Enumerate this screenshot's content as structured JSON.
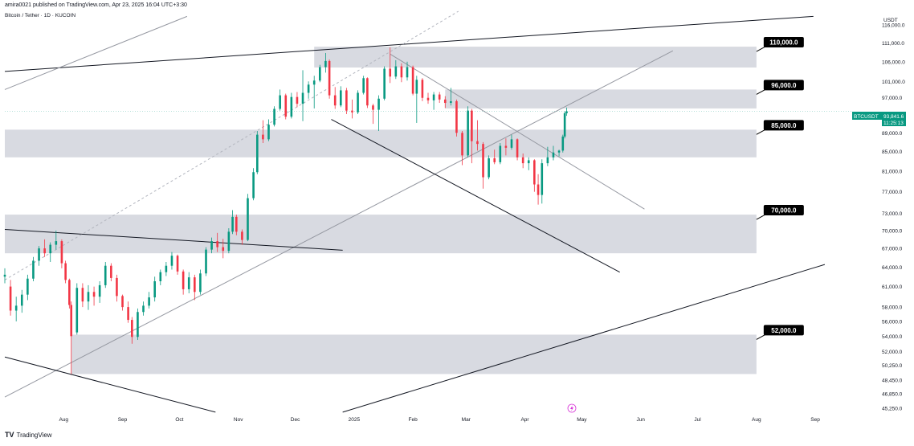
{
  "header": {
    "publish_line": "amira0021 published on TradingView.com, Apr 23, 2025 16:04 UTC+3:30",
    "symbol_line": "Bitcoin / Tether · 1D · KUCOIN"
  },
  "footer": {
    "logo_glyph": "TV",
    "brand": "TradingView"
  },
  "colors": {
    "up": "#089981",
    "down": "#f23645",
    "zone": "#d1d4dc",
    "label_bg": "#000000",
    "price_tag": "#089981",
    "grid_line": "#131722",
    "flash_icon": "#d733d7"
  },
  "flash_icon": "lightning-icon",
  "chart_data": {
    "type": "candlestick",
    "symbol": "BTCUSDT",
    "exchange": "KUCOIN",
    "interval": "1D",
    "x_axis": {
      "range": [
        "2024-07-01",
        "2025-09-20"
      ]
    },
    "x_tick_labels": [
      {
        "date": "2024-08-01",
        "label": "Aug"
      },
      {
        "date": "2024-09-01",
        "label": "Sep"
      },
      {
        "date": "2024-10-01",
        "label": "Oct"
      },
      {
        "date": "2024-11-01",
        "label": "Nov"
      },
      {
        "date": "2024-12-01",
        "label": "Dec"
      },
      {
        "date": "2025-01-01",
        "label": "2025"
      },
      {
        "date": "2025-02-01",
        "label": "Feb"
      },
      {
        "date": "2025-03-01",
        "label": "Mar"
      },
      {
        "date": "2025-04-01",
        "label": "Apr"
      },
      {
        "date": "2025-05-01",
        "label": "May"
      },
      {
        "date": "2025-06-01",
        "label": "Jun"
      },
      {
        "date": "2025-07-01",
        "label": "Jul"
      },
      {
        "date": "2025-08-01",
        "label": "Aug"
      },
      {
        "date": "2025-09-01",
        "label": "Sep"
      }
    ],
    "y_axis": {
      "unit": "USDT",
      "scale": "log",
      "range": [
        44000,
        120000
      ]
    },
    "y_tick_labels": [
      {
        "value": 116000,
        "label": "116,000.0"
      },
      {
        "value": 111000,
        "label": "111,000.0"
      },
      {
        "value": 106000,
        "label": "106,000.0"
      },
      {
        "value": 101000,
        "label": "101,000.0"
      },
      {
        "value": 97000,
        "label": "97,000.0"
      },
      {
        "value": 89000,
        "label": "89,000.0"
      },
      {
        "value": 85000,
        "label": "85,000.0"
      },
      {
        "value": 81000,
        "label": "81,000.0"
      },
      {
        "value": 77000,
        "label": "77,000.0"
      },
      {
        "value": 73000,
        "label": "73,000.0"
      },
      {
        "value": 70000,
        "label": "70,000.0"
      },
      {
        "value": 67000,
        "label": "67,000.0"
      },
      {
        "value": 64000,
        "label": "64,000.0"
      },
      {
        "value": 61000,
        "label": "61,000.0"
      },
      {
        "value": 58000,
        "label": "58,000.0"
      },
      {
        "value": 56000,
        "label": "56,000.0"
      },
      {
        "value": 54000,
        "label": "54,000.0"
      },
      {
        "value": 52000,
        "label": "52,000.0"
      },
      {
        "value": 50250,
        "label": "50,250.0"
      },
      {
        "value": 48450,
        "label": "48,450.0"
      },
      {
        "value": 46850,
        "label": "46,850.0"
      },
      {
        "value": 45250,
        "label": "45,250.0"
      }
    ],
    "last_price": {
      "symbol": "BTCUSDT",
      "value": 93841.6,
      "label": "93,841.6",
      "countdown": "11:25:13"
    },
    "zones": [
      {
        "label": "110,000.0",
        "start": "2024-12-11",
        "end": "2025-08-01",
        "low": 104500,
        "high": 110000
      },
      {
        "label": "96,000.0",
        "start": "2025-02-18",
        "end": "2025-08-01",
        "low": 94500,
        "high": 99000
      },
      {
        "label": "85,000.0",
        "start": "2024-07-01",
        "end": "2025-08-01",
        "low": 83800,
        "high": 89700
      },
      {
        "label": "70,000.0",
        "start": "2024-07-01",
        "end": "2025-08-01",
        "low": 66200,
        "high": 72800
      },
      {
        "label": "52,000.0",
        "start": "2024-08-05",
        "end": "2025-08-01",
        "low": 49200,
        "high": 54200
      }
    ],
    "trendlines": [
      {
        "name": "upper-channel-line",
        "from": [
          "2024-07-01",
          103500
        ],
        "to": [
          "2025-08-31",
          118500
        ],
        "color": "#131722",
        "width": 1
      },
      {
        "name": "rising-channel-line",
        "from": [
          "2024-07-01",
          46500
        ],
        "to": [
          "2025-06-18",
          108900
        ],
        "color": "#9598a1",
        "width": 1
      },
      {
        "name": "upper-left-diagonal",
        "from": [
          "2024-07-01",
          99000
        ],
        "to": [
          "2024-10-05",
          118500
        ],
        "color": "#9598a1",
        "width": 1
      },
      {
        "name": "left-descending-line",
        "from": [
          "2024-07-01",
          70200
        ],
        "to": [
          "2024-12-26",
          66700
        ],
        "color": "#131722",
        "width": 1
      },
      {
        "name": "bottom-left-descending",
        "from": [
          "2024-07-01",
          51300
        ],
        "to": [
          "2024-10-20",
          44800
        ],
        "color": "#131722",
        "width": 1
      },
      {
        "name": "bottom-rising-line",
        "from": [
          "2024-12-26",
          44800
        ],
        "to": [
          "2025-09-06",
          64400
        ],
        "color": "#131722",
        "width": 1
      },
      {
        "name": "wedge-upper-line",
        "from": [
          "2025-01-20",
          108000
        ],
        "to": [
          "2025-06-03",
          73800
        ],
        "color": "#9598a1",
        "width": 1
      },
      {
        "name": "wedge-lower-line",
        "from": [
          "2024-12-20",
          92000
        ],
        "to": [
          "2025-05-21",
          63200
        ],
        "color": "#131722",
        "width": 1
      },
      {
        "name": "dashed-projection",
        "from": [
          "2024-07-01",
          62000
        ],
        "to": [
          "2025-02-25",
          120000
        ],
        "color": "#b2b5be",
        "width": 1,
        "dashed": true
      }
    ],
    "candles": [
      {
        "date": "2024-07-01",
        "o": 62500,
        "h": 63800,
        "l": 61500,
        "c": 62800
      },
      {
        "date": "2024-07-04",
        "o": 61000,
        "h": 62000,
        "l": 56800,
        "c": 57500
      },
      {
        "date": "2024-07-07",
        "o": 57500,
        "h": 59500,
        "l": 56000,
        "c": 58200
      },
      {
        "date": "2024-07-10",
        "o": 58200,
        "h": 60500,
        "l": 57200,
        "c": 59800
      },
      {
        "date": "2024-07-13",
        "o": 59800,
        "h": 62800,
        "l": 59000,
        "c": 62200
      },
      {
        "date": "2024-07-16",
        "o": 62200,
        "h": 65600,
        "l": 61800,
        "c": 65000
      },
      {
        "date": "2024-07-19",
        "o": 65000,
        "h": 67400,
        "l": 64200,
        "c": 67000
      },
      {
        "date": "2024-07-22",
        "o": 67000,
        "h": 68500,
        "l": 65600,
        "c": 66200
      },
      {
        "date": "2024-07-25",
        "o": 66200,
        "h": 68000,
        "l": 64800,
        "c": 67600
      },
      {
        "date": "2024-07-28",
        "o": 67600,
        "h": 70000,
        "l": 66800,
        "c": 68200
      },
      {
        "date": "2024-07-31",
        "o": 68200,
        "h": 68500,
        "l": 63800,
        "c": 64600
      },
      {
        "date": "2024-08-02",
        "o": 64600,
        "h": 65000,
        "l": 61500,
        "c": 62000
      },
      {
        "date": "2024-08-04",
        "o": 62000,
        "h": 62200,
        "l": 57800,
        "c": 58300
      },
      {
        "date": "2024-08-05",
        "o": 58300,
        "h": 58800,
        "l": 49200,
        "c": 54000
      },
      {
        "date": "2024-08-08",
        "o": 54500,
        "h": 61500,
        "l": 54200,
        "c": 60800
      },
      {
        "date": "2024-08-11",
        "o": 60800,
        "h": 61500,
        "l": 58000,
        "c": 58800
      },
      {
        "date": "2024-08-14",
        "o": 58800,
        "h": 61200,
        "l": 57600,
        "c": 60200
      },
      {
        "date": "2024-08-17",
        "o": 60200,
        "h": 61000,
        "l": 58200,
        "c": 59500
      },
      {
        "date": "2024-08-20",
        "o": 59500,
        "h": 61800,
        "l": 58600,
        "c": 61200
      },
      {
        "date": "2024-08-23",
        "o": 61200,
        "h": 64800,
        "l": 60800,
        "c": 64200
      },
      {
        "date": "2024-08-26",
        "o": 64200,
        "h": 64600,
        "l": 61800,
        "c": 62300
      },
      {
        "date": "2024-08-29",
        "o": 62300,
        "h": 62800,
        "l": 58800,
        "c": 59600
      },
      {
        "date": "2024-09-01",
        "o": 59600,
        "h": 59800,
        "l": 57500,
        "c": 58000
      },
      {
        "date": "2024-09-04",
        "o": 58000,
        "h": 58800,
        "l": 55800,
        "c": 56200
      },
      {
        "date": "2024-09-06",
        "o": 56200,
        "h": 56600,
        "l": 53000,
        "c": 53900
      },
      {
        "date": "2024-09-09",
        "o": 53900,
        "h": 57800,
        "l": 53500,
        "c": 57300
      },
      {
        "date": "2024-09-12",
        "o": 57300,
        "h": 58800,
        "l": 56800,
        "c": 58200
      },
      {
        "date": "2024-09-15",
        "o": 58200,
        "h": 60200,
        "l": 57800,
        "c": 59400
      },
      {
        "date": "2024-09-18",
        "o": 59400,
        "h": 62500,
        "l": 58800,
        "c": 61800
      },
      {
        "date": "2024-09-21",
        "o": 61800,
        "h": 63600,
        "l": 61200,
        "c": 63200
      },
      {
        "date": "2024-09-24",
        "o": 63200,
        "h": 64800,
        "l": 62600,
        "c": 64200
      },
      {
        "date": "2024-09-27",
        "o": 64200,
        "h": 66400,
        "l": 63600,
        "c": 65800
      },
      {
        "date": "2024-09-30",
        "o": 65800,
        "h": 66000,
        "l": 62800,
        "c": 63300
      },
      {
        "date": "2024-10-03",
        "o": 63300,
        "h": 63600,
        "l": 59800,
        "c": 60600
      },
      {
        "date": "2024-10-06",
        "o": 60600,
        "h": 63200,
        "l": 60000,
        "c": 62400
      },
      {
        "date": "2024-10-09",
        "o": 62400,
        "h": 62800,
        "l": 59000,
        "c": 60200
      },
      {
        "date": "2024-10-12",
        "o": 60200,
        "h": 63600,
        "l": 59800,
        "c": 63000
      },
      {
        "date": "2024-10-15",
        "o": 63000,
        "h": 67200,
        "l": 62600,
        "c": 66800
      },
      {
        "date": "2024-10-18",
        "o": 66800,
        "h": 68800,
        "l": 66200,
        "c": 68200
      },
      {
        "date": "2024-10-21",
        "o": 68200,
        "h": 69600,
        "l": 66400,
        "c": 67200
      },
      {
        "date": "2024-10-24",
        "o": 67200,
        "h": 68600,
        "l": 65400,
        "c": 66600
      },
      {
        "date": "2024-10-27",
        "o": 66600,
        "h": 70400,
        "l": 66200,
        "c": 69800
      },
      {
        "date": "2024-10-29",
        "o": 69800,
        "h": 73600,
        "l": 69400,
        "c": 72400
      },
      {
        "date": "2024-10-31",
        "o": 72400,
        "h": 72800,
        "l": 69200,
        "c": 69800
      },
      {
        "date": "2024-11-03",
        "o": 69800,
        "h": 70200,
        "l": 67600,
        "c": 68400
      },
      {
        "date": "2024-11-06",
        "o": 68400,
        "h": 76600,
        "l": 68200,
        "c": 75800
      },
      {
        "date": "2024-11-09",
        "o": 75800,
        "h": 81600,
        "l": 75400,
        "c": 80800
      },
      {
        "date": "2024-11-11",
        "o": 80800,
        "h": 89400,
        "l": 80400,
        "c": 88600
      },
      {
        "date": "2024-11-14",
        "o": 88600,
        "h": 91800,
        "l": 86800,
        "c": 87600
      },
      {
        "date": "2024-11-17",
        "o": 87600,
        "h": 92000,
        "l": 87200,
        "c": 90800
      },
      {
        "date": "2024-11-20",
        "o": 90800,
        "h": 95000,
        "l": 90400,
        "c": 94400
      },
      {
        "date": "2024-11-23",
        "o": 94400,
        "h": 99000,
        "l": 94000,
        "c": 97600
      },
      {
        "date": "2024-11-26",
        "o": 97600,
        "h": 98000,
        "l": 92000,
        "c": 92600
      },
      {
        "date": "2024-11-29",
        "o": 92600,
        "h": 98200,
        "l": 92200,
        "c": 97200
      },
      {
        "date": "2024-12-02",
        "o": 97200,
        "h": 98400,
        "l": 94800,
        "c": 95600
      },
      {
        "date": "2024-12-05",
        "o": 95600,
        "h": 103800,
        "l": 91600,
        "c": 98200
      },
      {
        "date": "2024-12-08",
        "o": 98200,
        "h": 101000,
        "l": 96800,
        "c": 100200
      },
      {
        "date": "2024-12-11",
        "o": 100200,
        "h": 102400,
        "l": 94500,
        "c": 101200
      },
      {
        "date": "2024-12-14",
        "o": 101200,
        "h": 105200,
        "l": 100800,
        "c": 104600
      },
      {
        "date": "2024-12-17",
        "o": 104600,
        "h": 108300,
        "l": 103200,
        "c": 106200
      },
      {
        "date": "2024-12-19",
        "o": 106200,
        "h": 106600,
        "l": 96800,
        "c": 97600
      },
      {
        "date": "2024-12-22",
        "o": 97600,
        "h": 99600,
        "l": 94400,
        "c": 95200
      },
      {
        "date": "2024-12-25",
        "o": 95200,
        "h": 99800,
        "l": 94800,
        "c": 98800
      },
      {
        "date": "2024-12-28",
        "o": 98800,
        "h": 99400,
        "l": 93200,
        "c": 94000
      },
      {
        "date": "2024-12-31",
        "o": 94000,
        "h": 96600,
        "l": 92200,
        "c": 93600
      },
      {
        "date": "2025-01-03",
        "o": 93600,
        "h": 98800,
        "l": 93200,
        "c": 98200
      },
      {
        "date": "2025-01-06",
        "o": 98200,
        "h": 102400,
        "l": 97800,
        "c": 101800
      },
      {
        "date": "2025-01-08",
        "o": 101800,
        "h": 102000,
        "l": 94600,
        "c": 95200
      },
      {
        "date": "2025-01-11",
        "o": 95200,
        "h": 95600,
        "l": 91000,
        "c": 94200
      },
      {
        "date": "2025-01-14",
        "o": 94200,
        "h": 97600,
        "l": 89400,
        "c": 96800
      },
      {
        "date": "2025-01-17",
        "o": 96800,
        "h": 104800,
        "l": 96400,
        "c": 104200
      },
      {
        "date": "2025-01-20",
        "o": 104200,
        "h": 109800,
        "l": 100600,
        "c": 102200
      },
      {
        "date": "2025-01-23",
        "o": 102200,
        "h": 106400,
        "l": 101600,
        "c": 104800
      },
      {
        "date": "2025-01-26",
        "o": 104800,
        "h": 105600,
        "l": 100800,
        "c": 102000
      },
      {
        "date": "2025-01-29",
        "o": 102000,
        "h": 106000,
        "l": 101200,
        "c": 104600
      },
      {
        "date": "2025-02-01",
        "o": 104600,
        "h": 105000,
        "l": 97600,
        "c": 98000
      },
      {
        "date": "2025-02-03",
        "o": 98000,
        "h": 102400,
        "l": 91200,
        "c": 101400
      },
      {
        "date": "2025-02-06",
        "o": 101400,
        "h": 101800,
        "l": 96200,
        "c": 97000
      },
      {
        "date": "2025-02-09",
        "o": 97000,
        "h": 98200,
        "l": 95600,
        "c": 96400
      },
      {
        "date": "2025-02-12",
        "o": 96400,
        "h": 98400,
        "l": 94200,
        "c": 97800
      },
      {
        "date": "2025-02-15",
        "o": 97800,
        "h": 98400,
        "l": 95800,
        "c": 96600
      },
      {
        "date": "2025-02-18",
        "o": 96600,
        "h": 97400,
        "l": 94600,
        "c": 95800
      },
      {
        "date": "2025-02-21",
        "o": 95800,
        "h": 99400,
        "l": 95200,
        "c": 96200
      },
      {
        "date": "2025-02-24",
        "o": 96200,
        "h": 96600,
        "l": 88200,
        "c": 89000
      },
      {
        "date": "2025-02-27",
        "o": 89000,
        "h": 89400,
        "l": 82200,
        "c": 84200
      },
      {
        "date": "2025-03-02",
        "o": 84200,
        "h": 95000,
        "l": 83800,
        "c": 94000
      },
      {
        "date": "2025-03-04",
        "o": 94000,
        "h": 94400,
        "l": 82600,
        "c": 87200
      },
      {
        "date": "2025-03-07",
        "o": 87200,
        "h": 91800,
        "l": 85200,
        "c": 86600
      },
      {
        "date": "2025-03-10",
        "o": 86600,
        "h": 87000,
        "l": 77600,
        "c": 79800
      },
      {
        "date": "2025-03-13",
        "o": 79800,
        "h": 84200,
        "l": 79400,
        "c": 83600
      },
      {
        "date": "2025-03-16",
        "o": 83600,
        "h": 85400,
        "l": 82400,
        "c": 82800
      },
      {
        "date": "2025-03-19",
        "o": 82800,
        "h": 86800,
        "l": 82400,
        "c": 86200
      },
      {
        "date": "2025-03-22",
        "o": 86200,
        "h": 87800,
        "l": 84200,
        "c": 85800
      },
      {
        "date": "2025-03-25",
        "o": 85800,
        "h": 88600,
        "l": 85400,
        "c": 87600
      },
      {
        "date": "2025-03-28",
        "o": 87600,
        "h": 87800,
        "l": 83200,
        "c": 83800
      },
      {
        "date": "2025-03-31",
        "o": 83800,
        "h": 84600,
        "l": 81600,
        "c": 82600
      },
      {
        "date": "2025-04-03",
        "o": 82600,
        "h": 83800,
        "l": 81200,
        "c": 83200
      },
      {
        "date": "2025-04-06",
        "o": 83200,
        "h": 83400,
        "l": 77000,
        "c": 78400
      },
      {
        "date": "2025-04-08",
        "o": 78400,
        "h": 80400,
        "l": 74600,
        "c": 76400
      },
      {
        "date": "2025-04-10",
        "o": 76400,
        "h": 83400,
        "l": 74800,
        "c": 82600
      },
      {
        "date": "2025-04-13",
        "o": 82600,
        "h": 86000,
        "l": 82000,
        "c": 83800
      },
      {
        "date": "2025-04-16",
        "o": 83800,
        "h": 86200,
        "l": 83200,
        "c": 84800
      },
      {
        "date": "2025-04-19",
        "o": 84800,
        "h": 85400,
        "l": 84000,
        "c": 85200
      },
      {
        "date": "2025-04-21",
        "o": 85200,
        "h": 88600,
        "l": 84800,
        "c": 88200
      },
      {
        "date": "2025-04-22",
        "o": 88200,
        "h": 93800,
        "l": 87800,
        "c": 93400
      },
      {
        "date": "2025-04-23",
        "o": 93400,
        "h": 94700,
        "l": 92800,
        "c": 93842
      }
    ]
  }
}
